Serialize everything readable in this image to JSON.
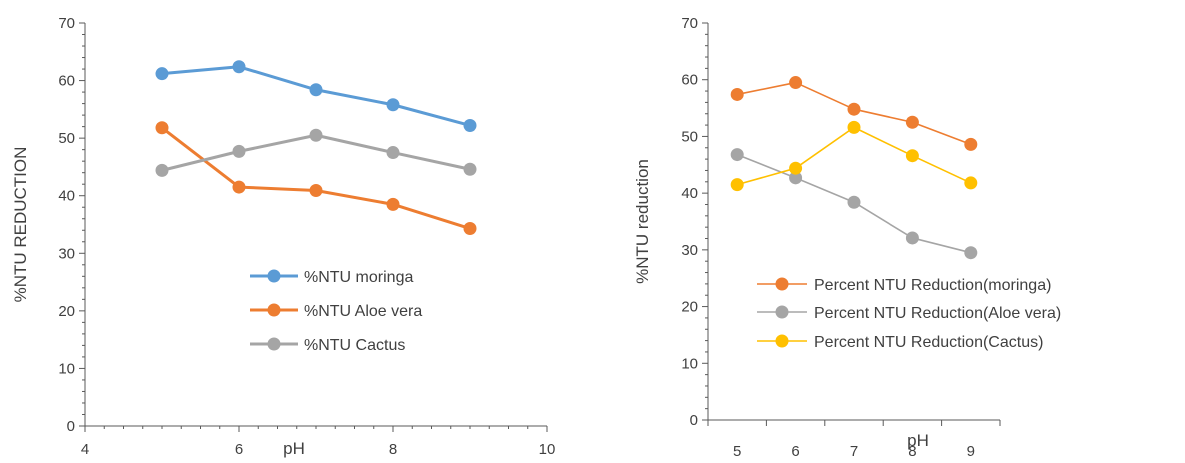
{
  "chart_data": [
    {
      "type": "scatter",
      "title": "",
      "xlabel": "pH",
      "ylabel": "%NTU REDUCTION",
      "xlim": [
        4,
        10
      ],
      "ylim": [
        0,
        70
      ],
      "x_ticks": [
        4,
        6,
        8,
        10
      ],
      "y_ticks": [
        0,
        10,
        20,
        30,
        40,
        50,
        60,
        70
      ],
      "grid": false,
      "legend_position": "center-right",
      "series": [
        {
          "name": "%NTU moringa",
          "color": "#5B9BD5",
          "x": [
            5,
            6,
            7,
            8,
            9
          ],
          "values": [
            61.2,
            62.4,
            58.4,
            55.8,
            52.2
          ]
        },
        {
          "name": "%NTU Aloe vera",
          "color": "#ED7D31",
          "x": [
            5,
            6,
            7,
            8,
            9
          ],
          "values": [
            51.8,
            41.5,
            40.9,
            38.5,
            34.3
          ]
        },
        {
          "name": "%NTU Cactus",
          "color": "#A5A5A5",
          "x": [
            5,
            6,
            7,
            8,
            9
          ],
          "values": [
            44.4,
            47.7,
            50.5,
            47.5,
            44.6
          ]
        }
      ]
    },
    {
      "type": "line",
      "title": "",
      "xlabel": "pH",
      "ylabel": "%NTU reduction",
      "categories": [
        "5",
        "6",
        "7",
        "8",
        "9"
      ],
      "ylim": [
        0,
        70
      ],
      "y_ticks": [
        0,
        10,
        20,
        30,
        40,
        50,
        60,
        70
      ],
      "grid": false,
      "legend_position": "bottom-right",
      "series": [
        {
          "name": "Percent NTU Reduction(moringa)",
          "color": "#ED7D31",
          "values": [
            57.4,
            59.5,
            54.8,
            52.5,
            48.6
          ]
        },
        {
          "name": "Percent NTU Reduction(Aloe vera)",
          "color": "#A5A5A5",
          "values": [
            46.8,
            42.7,
            38.4,
            32.1,
            29.5
          ]
        },
        {
          "name": "Percent NTU Reduction(Cactus)",
          "color": "#FFC000",
          "values": [
            41.5,
            44.4,
            51.6,
            46.6,
            41.8
          ]
        }
      ]
    }
  ]
}
